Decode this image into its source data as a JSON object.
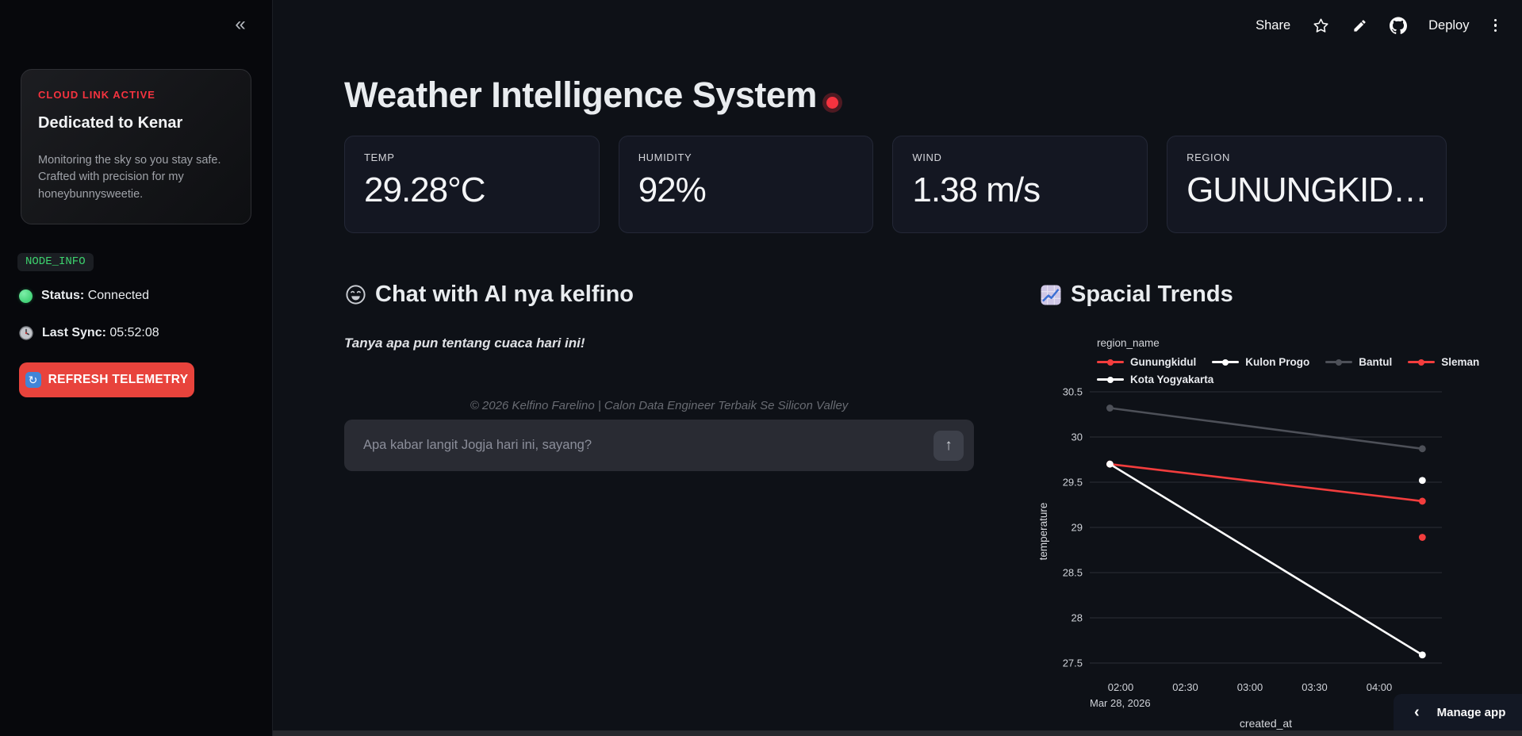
{
  "header": {
    "share_label": "Share",
    "deploy_label": "Deploy",
    "icons": [
      "star-icon",
      "edit-pencil-icon",
      "github-icon",
      "kebab-menu-icon"
    ]
  },
  "sidebar": {
    "collapse_glyph": "«",
    "hero": {
      "tag": "CLOUD LINK ACTIVE",
      "title": "Dedicated to Kenar",
      "body": "Monitoring the sky so you stay safe. Crafted with precision for my honeybunnysweetie."
    },
    "node_badge": "NODE_INFO",
    "status_label": "Status:",
    "status_value": "Connected",
    "sync_label": "Last Sync:",
    "sync_value": "05:52:08",
    "refresh_label": "REFRESH TELEMETRY",
    "refresh_glyph": "↻"
  },
  "main": {
    "title": "Weather Intelligence System",
    "metrics": [
      {
        "label": "TEMP",
        "value": "29.28°C"
      },
      {
        "label": "HUMIDITY",
        "value": "92%"
      },
      {
        "label": "WIND",
        "value": "1.38 m/s"
      },
      {
        "label": "REGION",
        "value": "GUNUNGKID…"
      }
    ],
    "chat": {
      "heading": "Chat with AI nya kelfino",
      "tagline": "Tanya apa pun tentang cuaca hari ini!",
      "copyright": "© 2026 Kelfino Farelino | Calon Data Engineer Terbaik Se Silicon Valley",
      "input_placeholder": "Apa kabar langit Jogja hari ini, sayang?",
      "send_glyph": "↑"
    }
  },
  "chart": {
    "heading": "Spacial Trends"
  },
  "chart_data": {
    "type": "line",
    "title": "Spacial Trends",
    "xlabel": "created_at",
    "ylabel": "temperature",
    "x_date_label": "Mar 28, 2026",
    "legend_title": "region_name",
    "legend_position": "top",
    "grid": "horizontal-only",
    "ylim": [
      27.35,
      30.62
    ],
    "y_ticks": [
      30.5,
      30,
      29.5,
      29,
      28.5,
      28,
      27.5
    ],
    "x_ticks": [
      {
        "minutes": 120,
        "label": "02:00"
      },
      {
        "minutes": 150,
        "label": "02:30"
      },
      {
        "minutes": 180,
        "label": "03:00"
      },
      {
        "minutes": 210,
        "label": "03:30"
      },
      {
        "minutes": 240,
        "label": "04:00"
      }
    ],
    "series": [
      {
        "name": "Gunungkidul",
        "color": "#f23d3d",
        "points": [
          {
            "t": "01:55",
            "m": 115,
            "y": 29.7
          },
          {
            "t": "04:20",
            "m": 260,
            "y": 29.29
          }
        ]
      },
      {
        "name": "Kulon Progo",
        "color": "#ffffff",
        "points": [
          {
            "t": "04:20",
            "m": 260,
            "y": 29.52
          }
        ]
      },
      {
        "name": "Bantul",
        "color": "#4d5058",
        "points": [
          {
            "t": "01:55",
            "m": 115,
            "y": 30.32
          },
          {
            "t": "04:20",
            "m": 260,
            "y": 29.87
          }
        ]
      },
      {
        "name": "Sleman",
        "color": "#f23d3d",
        "points": [
          {
            "t": "04:20",
            "m": 260,
            "y": 28.89
          }
        ]
      },
      {
        "name": "Kota Yogyakarta",
        "color": "#ffffff",
        "points": [
          {
            "t": "01:55",
            "m": 115,
            "y": 29.7
          },
          {
            "t": "04:20",
            "m": 260,
            "y": 27.59
          }
        ]
      }
    ]
  },
  "manage_app": {
    "chevron": "‹",
    "label": "Manage app"
  },
  "colors": {
    "accent_red": "#e8433c",
    "alert_red": "#f5333f",
    "status_green": "#43d278",
    "node_green": "#3dd36e",
    "background": "#0e1117",
    "sidebar_background": "#07080c",
    "card_background": "#141722",
    "grid_line": "#2c2f37"
  }
}
